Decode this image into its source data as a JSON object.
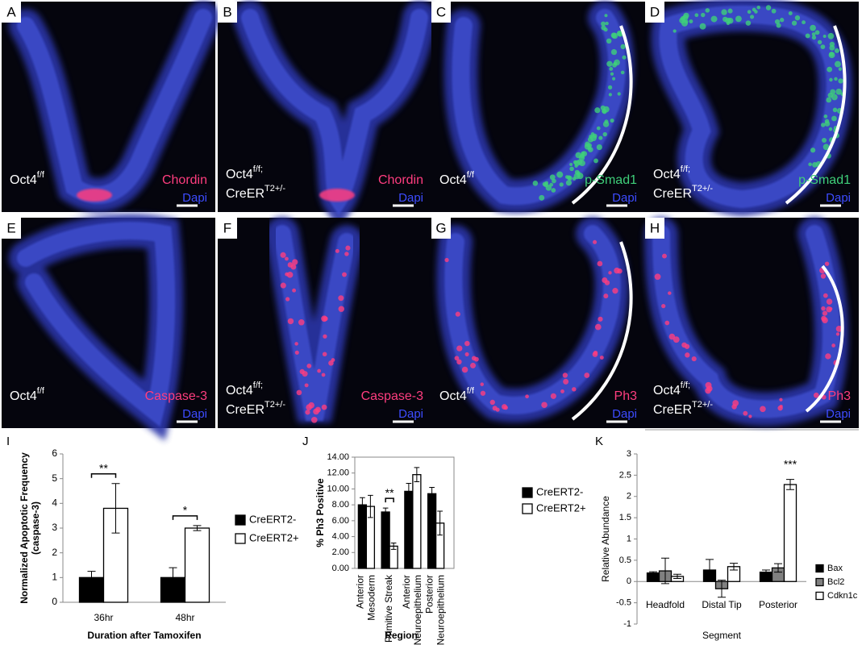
{
  "panels": [
    {
      "label": "A",
      "genotype": [
        {
          "text": "Oct4",
          "sup": "f/f"
        }
      ],
      "marker": "Chordin",
      "marker_color": "#ff3d7f",
      "stain": "Dapi"
    },
    {
      "label": "B",
      "genotype": [
        {
          "text": "Oct4",
          "sup": "f/f;"
        },
        {
          "text": "CreER",
          "sup": "T2+/-"
        }
      ],
      "marker": "Chordin",
      "marker_color": "#ff3d7f",
      "stain": "Dapi"
    },
    {
      "label": "C",
      "genotype": [
        {
          "text": "Oct4",
          "sup": "f/f"
        }
      ],
      "marker": "p-Smad1",
      "marker_color": "#3fcf7a",
      "stain": "Dapi"
    },
    {
      "label": "D",
      "genotype": [
        {
          "text": "Oct4",
          "sup": "f/f;"
        },
        {
          "text": "CreER",
          "sup": "T2+/-"
        }
      ],
      "marker": "p-Smad1",
      "marker_color": "#3fcf7a",
      "stain": "Dapi"
    },
    {
      "label": "E",
      "genotype": [
        {
          "text": "Oct4",
          "sup": "f/f"
        }
      ],
      "marker": "Caspase-3",
      "marker_color": "#ff3d7f",
      "stain": "Dapi"
    },
    {
      "label": "F",
      "genotype": [
        {
          "text": "Oct4",
          "sup": "f/f;"
        },
        {
          "text": "CreER",
          "sup": "T2+/-"
        }
      ],
      "marker": "Caspase-3",
      "marker_color": "#ff3d7f",
      "stain": "Dapi"
    },
    {
      "label": "G",
      "genotype": [
        {
          "text": "Oct4",
          "sup": "f/f"
        }
      ],
      "marker": "Ph3",
      "marker_color": "#ff3d7f",
      "stain": "Dapi"
    },
    {
      "label": "H",
      "genotype": [
        {
          "text": "Oct4",
          "sup": "f/f;"
        },
        {
          "text": "CreER",
          "sup": "T2+/-"
        }
      ],
      "marker": "Ph3",
      "marker_color": "#ff3d7f",
      "stain": "Dapi"
    }
  ],
  "chart_data": [
    {
      "type": "bar",
      "label": "I",
      "ylabel": [
        "Normalized Apoptotic Frequency",
        "(caspase-3)"
      ],
      "xlabel": "Duration after Tamoxifen",
      "categories": [
        [
          "36hr"
        ],
        [
          "48hr"
        ]
      ],
      "series": [
        {
          "name": "CreERT2-",
          "color": "#000000",
          "values": [
            1,
            1
          ],
          "errors": [
            0.25,
            0.4
          ]
        },
        {
          "name": "CreERT2+",
          "color": "#ffffff",
          "values": [
            3.8,
            3.0
          ],
          "errors": [
            1.0,
            0.1
          ]
        }
      ],
      "annotations": [
        "**",
        "*"
      ],
      "ylim": [
        0,
        6
      ],
      "yticks": [
        0,
        1,
        2,
        3,
        4,
        5,
        6
      ]
    },
    {
      "type": "bar",
      "label": "J",
      "ylabel": [
        "% Ph3 Positive"
      ],
      "xlabel": "Region",
      "categories": [
        [
          "Anterior",
          "Mesoderm"
        ],
        [
          "Primitive Streak"
        ],
        [
          "Anterior",
          "Neuroepithelium"
        ],
        [
          "Posterior",
          "Neuroepithelium"
        ]
      ],
      "series": [
        {
          "name": "CreERT2-",
          "color": "#000000",
          "values": [
            8.0,
            7.1,
            9.7,
            9.4
          ],
          "errors": [
            0.9,
            0.5,
            1.0,
            0.8
          ]
        },
        {
          "name": "CreERT2+",
          "color": "#ffffff",
          "values": [
            7.8,
            2.8,
            11.8,
            5.7
          ],
          "errors": [
            1.4,
            0.4,
            0.9,
            1.5
          ]
        }
      ],
      "annotations": [
        "**"
      ],
      "ylim": [
        0,
        14
      ],
      "yticks": [
        {
          "value": 0,
          "label": "0.00"
        },
        {
          "value": 2,
          "label": "2.00"
        },
        {
          "value": 4,
          "label": "4.00"
        },
        {
          "value": 6,
          "label": "6.00"
        },
        {
          "value": 8,
          "label": "8.00"
        },
        {
          "value": 10,
          "label": "10.00"
        },
        {
          "value": 12,
          "label": "12.00"
        },
        {
          "value": 14,
          "label": "14.00"
        }
      ]
    },
    {
      "type": "bar",
      "label": "K",
      "ylabel": [
        "Relative Abundance"
      ],
      "xlabel": "Segment",
      "categories": [
        [
          "Headfold"
        ],
        [
          "Distal Tip"
        ],
        [
          "Posterior"
        ]
      ],
      "series": [
        {
          "name": "Bax",
          "color": "#000000",
          "values": [
            0.2,
            0.27,
            0.22
          ],
          "errors": [
            0.03,
            0.25,
            0.05
          ]
        },
        {
          "name": "Bcl2",
          "color": "#808080",
          "values": [
            0.25,
            -0.17,
            0.32
          ],
          "errors": [
            0.3,
            0.2,
            0.1
          ]
        },
        {
          "name": "Cdkn1c",
          "color": "#ffffff",
          "values": [
            0.12,
            0.35,
            2.28
          ],
          "errors": [
            0.05,
            0.08,
            0.12
          ]
        }
      ],
      "annotations": [
        "***"
      ],
      "ylim": [
        -1,
        3
      ],
      "yticks": [
        -1,
        -0.5,
        0,
        0.5,
        1,
        1.5,
        2,
        2.5,
        3
      ]
    }
  ]
}
